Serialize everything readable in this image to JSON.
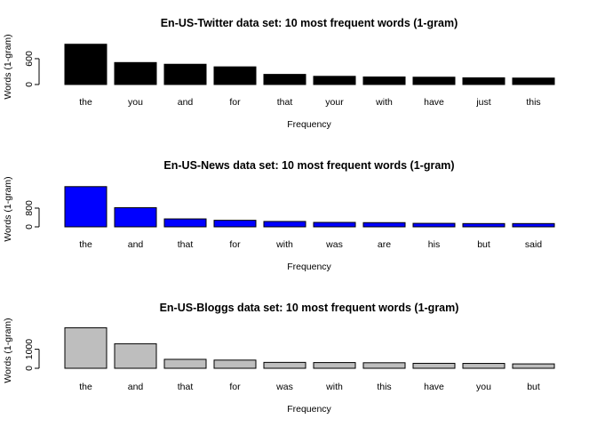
{
  "chart_data": [
    {
      "type": "bar",
      "title": "En-US-Twitter data set: 10 most frequent words (1-gram)",
      "xlabel": "Frequency",
      "ylabel": "Words (1-gram)",
      "yticks": [
        0,
        600
      ],
      "ylim": [
        0,
        950
      ],
      "bar_color": "#000000",
      "categories": [
        "the",
        "you",
        "and",
        "for",
        "that",
        "your",
        "with",
        "have",
        "just",
        "this"
      ],
      "values": [
        935,
        510,
        470,
        410,
        235,
        190,
        175,
        170,
        155,
        150
      ]
    },
    {
      "type": "bar",
      "title": "En-US-News data set: 10 most frequent words (1-gram)",
      "xlabel": "Frequency",
      "ylabel": "Words (1-gram)",
      "yticks": [
        0,
        800
      ],
      "ylim": [
        0,
        1750
      ],
      "bar_color": "#0000ff",
      "categories": [
        "the",
        "and",
        "that",
        "for",
        "with",
        "was",
        "are",
        "his",
        "but",
        "said"
      ],
      "values": [
        1720,
        820,
        340,
        280,
        230,
        190,
        180,
        150,
        140,
        140
      ]
    },
    {
      "type": "bar",
      "title": "En-US-Bloggs data set: 10 most frequent words (1-gram)",
      "xlabel": "Frequency",
      "ylabel": "Words (1-gram)",
      "yticks": [
        0,
        1000
      ],
      "ylim": [
        0,
        2150
      ],
      "bar_color": "#bebebe",
      "categories": [
        "the",
        "and",
        "that",
        "for",
        "was",
        "with",
        "this",
        "have",
        "you",
        "but"
      ],
      "values": [
        2130,
        1290,
        470,
        430,
        310,
        300,
        290,
        260,
        255,
        230
      ]
    }
  ]
}
